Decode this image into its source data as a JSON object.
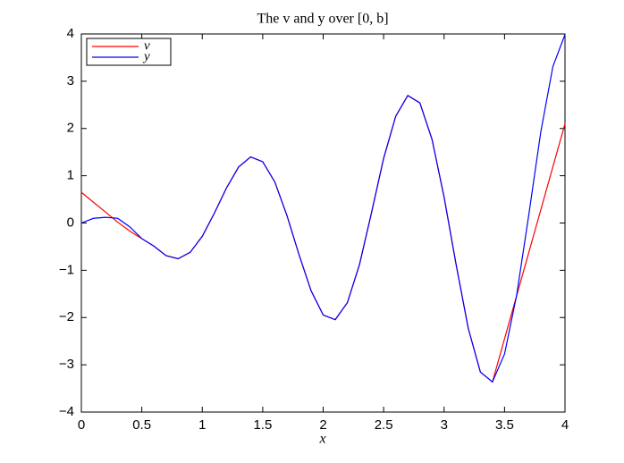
{
  "chart_data": {
    "type": "line",
    "title": "The v and y over [0, b]",
    "x_label": "x",
    "x": [
      0,
      0.1,
      0.2,
      0.3,
      0.4,
      0.5,
      0.6,
      0.7,
      0.8,
      0.9,
      1.0,
      1.1,
      1.2,
      1.3,
      1.4,
      1.5,
      1.6,
      1.7,
      1.8,
      1.9,
      2.0,
      2.1,
      2.2,
      2.3,
      2.4,
      2.5,
      2.6,
      2.7,
      2.8,
      2.9,
      3.0,
      3.1,
      3.2,
      3.3,
      3.4,
      3.5,
      3.6,
      3.7,
      3.8,
      3.9,
      4.0
    ],
    "series": [
      {
        "name": "v",
        "color": "#ff0000",
        "values": [
          0.65,
          0.44,
          0.23,
          0.02,
          -0.17,
          -0.33,
          -0.49,
          -0.69,
          -0.756,
          -0.621,
          -0.282,
          0.208,
          0.74,
          1.183,
          1.398,
          1.297,
          0.868,
          0.163,
          -0.669,
          -1.434,
          -1.946,
          -2.045,
          -1.686,
          -0.883,
          0.221,
          1.368,
          2.259,
          2.698,
          2.54,
          1.772,
          0.549,
          -0.887,
          -2.23,
          -3.152,
          -3.363,
          -2.45,
          -1.54,
          -0.63,
          0.28,
          1.19,
          2.1
        ]
      },
      {
        "name": "y",
        "color": "#0000ff",
        "values": [
          0,
          0.099,
          0.12,
          0.1,
          -0.08,
          -0.33,
          -0.49,
          -0.69,
          -0.756,
          -0.621,
          -0.282,
          0.208,
          0.74,
          1.183,
          1.398,
          1.297,
          0.868,
          0.163,
          -0.669,
          -1.434,
          -1.946,
          -2.045,
          -1.686,
          -0.883,
          0.221,
          1.368,
          2.259,
          2.698,
          2.54,
          1.772,
          0.549,
          -0.887,
          -2.23,
          -3.152,
          -3.363,
          -2.772,
          -1.53,
          0.163,
          1.93,
          3.311,
          3.988
        ]
      }
    ],
    "xlim": [
      0,
      4
    ],
    "xticks": [
      0,
      0.5,
      1,
      1.5,
      2,
      2.5,
      3,
      3.5,
      4
    ],
    "ylim": [
      -4,
      4
    ],
    "yticks": [
      {
        "value": -4,
        "label": "−4"
      },
      {
        "value": -3,
        "label": "−3"
      },
      {
        "value": -2,
        "label": "−2"
      },
      {
        "value": -1,
        "label": "−1"
      },
      0,
      1,
      2,
      3,
      4
    ],
    "legend": "top-left",
    "grid": false
  }
}
